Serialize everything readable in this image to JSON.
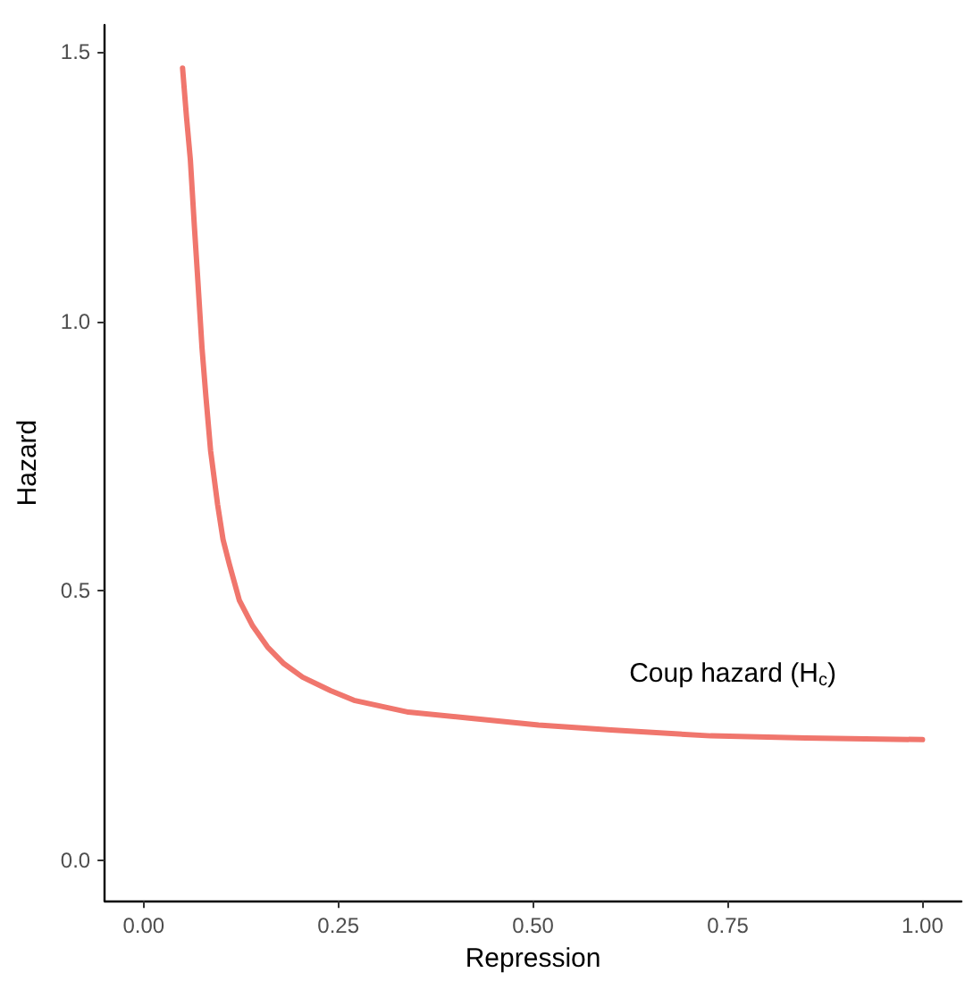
{
  "chart_data": {
    "type": "line",
    "xlabel": "Repression",
    "ylabel": "Hazard",
    "x": [
      0.05,
      0.055,
      0.06,
      0.065,
      0.069,
      0.075,
      0.08,
      0.086,
      0.095,
      0.102,
      0.11,
      0.123,
      0.14,
      0.159,
      0.18,
      0.204,
      0.24,
      0.27,
      0.34,
      0.418,
      0.507,
      0.6,
      0.728,
      0.85,
      1.0
    ],
    "series": [
      {
        "color": "#f0766d",
        "values": [
          1.47,
          1.38,
          1.3,
          1.18,
          1.09,
          0.95,
          0.86,
          0.76,
          0.66,
          0.595,
          0.55,
          0.482,
          0.435,
          0.396,
          0.365,
          0.34,
          0.315,
          0.297,
          0.275,
          0.264,
          0.251,
          0.242,
          0.231,
          0.227,
          0.224
        ]
      }
    ],
    "xlim": [
      -0.05,
      1.05
    ],
    "xticks": [
      {
        "value": 0,
        "label": "0.00"
      },
      {
        "value": 0.25,
        "label": "0.25"
      },
      {
        "value": 0.5,
        "label": "0.50"
      },
      {
        "value": 0.75,
        "label": "0.75"
      },
      {
        "value": 1,
        "label": "1.00"
      }
    ],
    "ylim": [
      -0.075,
      1.55
    ],
    "yticks": [
      {
        "value": 0,
        "label": "0.0"
      },
      {
        "value": 0.5,
        "label": "0.5"
      },
      {
        "value": 1,
        "label": "1.0"
      },
      {
        "value": 1.5,
        "label": "1.5"
      }
    ],
    "annotations": [
      "Coup hazard (H$_{c}$)"
    ],
    "grid": false,
    "marker": "none",
    "line_style": "solid"
  }
}
